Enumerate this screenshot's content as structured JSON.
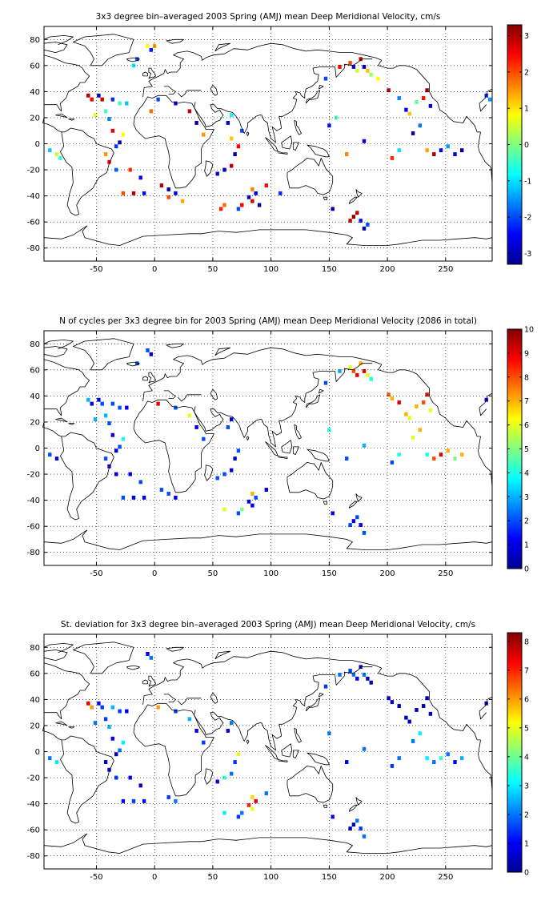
{
  "chart_data": [
    {
      "type": "heatmap",
      "title": "3x3 degree bin–averaged 2003 Spring (AMJ) mean Deep Meridional Velocity, cm/s",
      "xlabel": "",
      "ylabel": "",
      "xlim": [
        -95,
        290
      ],
      "ylim": [
        -90,
        90
      ],
      "xticks": [
        -50,
        0,
        50,
        100,
        150,
        200,
        250
      ],
      "yticks": [
        -80,
        -60,
        -40,
        -20,
        0,
        20,
        40,
        60,
        80
      ],
      "grid": true,
      "colorbar": {
        "min": -3.3,
        "max": 3.3,
        "ticks": [
          -3,
          -2,
          -1,
          0,
          1,
          2,
          3
        ]
      },
      "cells": [
        [
          -90,
          -5,
          -1.2
        ],
        [
          -84,
          -8,
          0.5
        ],
        [
          -81,
          -11,
          -0.5
        ],
        [
          -57,
          37,
          3
        ],
        [
          -54,
          34,
          2.5
        ],
        [
          -48,
          37,
          -3
        ],
        [
          -45,
          34,
          2.8
        ],
        [
          -51,
          22,
          0.7
        ],
        [
          -42,
          25,
          -0.4
        ],
        [
          -39,
          19,
          -1.6
        ],
        [
          -36,
          10,
          2.6
        ],
        [
          -33,
          -2,
          -2.1
        ],
        [
          -30,
          1,
          -3
        ],
        [
          -27,
          7,
          0.8
        ],
        [
          -36,
          34,
          -2.2
        ],
        [
          -30,
          31,
          -0.5
        ],
        [
          -24,
          31,
          -1.2
        ],
        [
          -42,
          -8,
          1.5
        ],
        [
          -39,
          -14,
          2.5
        ],
        [
          -33,
          -20,
          -1.8
        ],
        [
          -21,
          -20,
          2.2
        ],
        [
          -12,
          -26,
          -2.5
        ],
        [
          -27,
          -38,
          2
        ],
        [
          -18,
          -38,
          3
        ],
        [
          -9,
          -38,
          -2.4
        ],
        [
          -6,
          75,
          0.8
        ],
        [
          -3,
          72,
          -2.3
        ],
        [
          -18,
          60,
          -1
        ],
        [
          -15,
          65,
          -2
        ],
        [
          0,
          75,
          1.5
        ],
        [
          6,
          -32,
          3
        ],
        [
          12,
          -35,
          -3
        ],
        [
          12,
          -41,
          2
        ],
        [
          18,
          -38,
          -2.6
        ],
        [
          24,
          -44,
          1.4
        ],
        [
          54,
          -23,
          -2.8
        ],
        [
          60,
          -20,
          -3
        ],
        [
          66,
          -17,
          2.9
        ],
        [
          69,
          -8,
          -3
        ],
        [
          72,
          -2,
          2.5
        ],
        [
          66,
          4,
          1.2
        ],
        [
          75,
          10,
          -2
        ],
        [
          63,
          16,
          -2.5
        ],
        [
          66,
          22,
          -0.8
        ],
        [
          60,
          -47,
          1.8
        ],
        [
          57,
          -50,
          2.3
        ],
        [
          72,
          -50,
          -2
        ],
        [
          75,
          -47,
          2.5
        ],
        [
          81,
          -41,
          -3
        ],
        [
          84,
          -44,
          2.8
        ],
        [
          87,
          -38,
          -2.6
        ],
        [
          90,
          -47,
          -3
        ],
        [
          84,
          -35,
          1.6
        ],
        [
          96,
          -32,
          2.4
        ],
        [
          108,
          -38,
          -2.2
        ],
        [
          153,
          -50,
          -3
        ],
        [
          168,
          -59,
          2.7
        ],
        [
          171,
          -56,
          3.2
        ],
        [
          174,
          -53,
          2.9
        ],
        [
          177,
          -59,
          -2.4
        ],
        [
          180,
          -65,
          -3
        ],
        [
          183,
          -62,
          -2
        ],
        [
          168,
          62,
          2
        ],
        [
          171,
          59,
          -2.5
        ],
        [
          174,
          56,
          0.5
        ],
        [
          177,
          65,
          2.8
        ],
        [
          180,
          59,
          -3
        ],
        [
          183,
          56,
          1.2
        ],
        [
          186,
          53,
          0.2
        ],
        [
          192,
          50,
          0.8
        ],
        [
          159,
          59,
          2.5
        ],
        [
          147,
          50,
          -2
        ],
        [
          201,
          41,
          3
        ],
        [
          210,
          35,
          -1.6
        ],
        [
          216,
          26,
          -2.6
        ],
        [
          219,
          23,
          1.2
        ],
        [
          225,
          32,
          -0.2
        ],
        [
          231,
          35,
          2.4
        ],
        [
          234,
          41,
          3.2
        ],
        [
          237,
          29,
          -2.7
        ],
        [
          228,
          14,
          -1.7
        ],
        [
          222,
          8,
          -3
        ],
        [
          210,
          -5,
          -1
        ],
        [
          204,
          -11,
          2.2
        ],
        [
          234,
          -5,
          1.4
        ],
        [
          240,
          -8,
          3
        ],
        [
          246,
          -5,
          -2.5
        ],
        [
          252,
          -2,
          -1.5
        ],
        [
          258,
          -8,
          -2.7
        ],
        [
          264,
          -5,
          -3
        ],
        [
          180,
          2,
          -2.6
        ],
        [
          165,
          -8,
          1.6
        ],
        [
          150,
          14,
          -2.4
        ],
        [
          156,
          20,
          -0.4
        ],
        [
          285,
          37,
          -2.2
        ],
        [
          288,
          34,
          -1.5
        ],
        [
          -3,
          25,
          1.8
        ],
        [
          3,
          34,
          -2
        ],
        [
          18,
          31,
          -2.5
        ],
        [
          30,
          25,
          2.8
        ],
        [
          36,
          16,
          -3
        ],
        [
          42,
          7,
          1.5
        ]
      ]
    },
    {
      "type": "heatmap",
      "title": "N of cycles per 3x3 degree bin for 2003 Spring (AMJ) mean Deep Meridional Velocity (2086 in total)",
      "xlabel": "",
      "ylabel": "",
      "xlim": [
        -95,
        290
      ],
      "ylim": [
        -90,
        90
      ],
      "xticks": [
        -50,
        0,
        50,
        100,
        150,
        200,
        250
      ],
      "yticks": [
        -80,
        -60,
        -40,
        -20,
        0,
        20,
        40,
        60,
        80
      ],
      "grid": true,
      "colorbar": {
        "min": 0,
        "max": 10,
        "ticks": [
          0,
          1,
          2,
          3,
          4,
          5,
          6,
          7,
          8,
          9,
          10
        ]
      },
      "cells": [
        [
          -90,
          -5,
          2
        ],
        [
          -84,
          -8,
          1
        ],
        [
          -57,
          37,
          3
        ],
        [
          -54,
          34,
          1
        ],
        [
          -48,
          37,
          1
        ],
        [
          -45,
          34,
          2
        ],
        [
          -51,
          22,
          3
        ],
        [
          -42,
          25,
          3
        ],
        [
          -39,
          19,
          2
        ],
        [
          -36,
          10,
          1
        ],
        [
          -33,
          -2,
          1
        ],
        [
          -30,
          1,
          2
        ],
        [
          -27,
          7,
          4
        ],
        [
          -36,
          34,
          2
        ],
        [
          -30,
          31,
          2
        ],
        [
          -24,
          31,
          1
        ],
        [
          -42,
          -8,
          2
        ],
        [
          -39,
          -14,
          1
        ],
        [
          -33,
          -20,
          1
        ],
        [
          -21,
          -20,
          1
        ],
        [
          -12,
          -26,
          2
        ],
        [
          -27,
          -38,
          2
        ],
        [
          -18,
          -38,
          1
        ],
        [
          -9,
          -38,
          1
        ],
        [
          -6,
          75,
          2
        ],
        [
          -3,
          72,
          1
        ],
        [
          -15,
          65,
          2
        ],
        [
          6,
          -32,
          2
        ],
        [
          12,
          -35,
          2
        ],
        [
          18,
          -38,
          1
        ],
        [
          54,
          -23,
          2
        ],
        [
          60,
          -20,
          2
        ],
        [
          66,
          -17,
          1
        ],
        [
          69,
          -8,
          1
        ],
        [
          72,
          -2,
          2
        ],
        [
          63,
          16,
          2
        ],
        [
          66,
          22,
          1
        ],
        [
          60,
          -47,
          6
        ],
        [
          72,
          -50,
          2
        ],
        [
          75,
          -47,
          5
        ],
        [
          81,
          -41,
          1
        ],
        [
          84,
          -44,
          1
        ],
        [
          87,
          -38,
          2
        ],
        [
          84,
          -35,
          7
        ],
        [
          96,
          -32,
          1
        ],
        [
          153,
          -50,
          1
        ],
        [
          168,
          -59,
          2
        ],
        [
          171,
          -56,
          1
        ],
        [
          174,
          -53,
          2
        ],
        [
          177,
          -59,
          1
        ],
        [
          180,
          -65,
          2
        ],
        [
          168,
          62,
          6
        ],
        [
          171,
          59,
          8
        ],
        [
          174,
          56,
          9
        ],
        [
          177,
          65,
          7
        ],
        [
          180,
          59,
          9
        ],
        [
          183,
          56,
          6
        ],
        [
          186,
          53,
          4
        ],
        [
          159,
          59,
          3
        ],
        [
          147,
          50,
          2
        ],
        [
          201,
          41,
          8
        ],
        [
          204,
          38,
          7
        ],
        [
          210,
          35,
          9
        ],
        [
          216,
          26,
          7
        ],
        [
          219,
          23,
          6
        ],
        [
          225,
          32,
          7
        ],
        [
          231,
          35,
          8
        ],
        [
          234,
          41,
          9
        ],
        [
          237,
          29,
          6
        ],
        [
          228,
          14,
          7
        ],
        [
          222,
          8,
          6
        ],
        [
          210,
          -5,
          4
        ],
        [
          204,
          -11,
          2
        ],
        [
          234,
          -5,
          4
        ],
        [
          240,
          -8,
          8
        ],
        [
          246,
          -5,
          9
        ],
        [
          252,
          -2,
          7
        ],
        [
          258,
          -8,
          5
        ],
        [
          264,
          -5,
          7
        ],
        [
          180,
          2,
          3
        ],
        [
          165,
          -8,
          2
        ],
        [
          150,
          14,
          4
        ],
        [
          285,
          37,
          1
        ],
        [
          3,
          34,
          9
        ],
        [
          18,
          31,
          2
        ],
        [
          30,
          25,
          6
        ],
        [
          36,
          16,
          1
        ],
        [
          42,
          7,
          2
        ]
      ]
    },
    {
      "type": "heatmap",
      "title": "St. deviation for 3x3 degree bin–averaged 2003 Spring (AMJ) mean Deep Meridional Velocity, cm/s",
      "xlabel": "",
      "ylabel": "",
      "xlim": [
        -95,
        290
      ],
      "ylim": [
        -90,
        90
      ],
      "xticks": [
        -50,
        0,
        50,
        100,
        150,
        200,
        250
      ],
      "yticks": [
        -80,
        -60,
        -40,
        -20,
        0,
        20,
        40,
        60,
        80
      ],
      "grid": true,
      "colorbar": {
        "min": 0,
        "max": 8.3,
        "ticks": [
          0,
          1,
          2,
          3,
          4,
          5,
          6,
          7,
          8
        ]
      },
      "cells": [
        [
          -90,
          -5,
          2
        ],
        [
          -84,
          -8,
          3
        ],
        [
          -57,
          37,
          7.5
        ],
        [
          -54,
          34,
          6
        ],
        [
          -48,
          37,
          1
        ],
        [
          -45,
          34,
          1.5
        ],
        [
          -51,
          22,
          2
        ],
        [
          -42,
          25,
          1.5
        ],
        [
          -39,
          19,
          2.5
        ],
        [
          -36,
          10,
          1
        ],
        [
          -33,
          -2,
          0.5
        ],
        [
          -30,
          1,
          2
        ],
        [
          -27,
          7,
          3
        ],
        [
          -36,
          34,
          2.5
        ],
        [
          -30,
          31,
          1.5
        ],
        [
          -24,
          31,
          1
        ],
        [
          -42,
          -8,
          0.5
        ],
        [
          -39,
          -14,
          1
        ],
        [
          -33,
          -20,
          1.5
        ],
        [
          -21,
          -20,
          1
        ],
        [
          -12,
          -26,
          0.5
        ],
        [
          -27,
          -38,
          1
        ],
        [
          -18,
          -38,
          1.5
        ],
        [
          -9,
          -38,
          1
        ],
        [
          -6,
          75,
          1
        ],
        [
          -3,
          72,
          2
        ],
        [
          12,
          -35,
          1.5
        ],
        [
          18,
          -38,
          2
        ],
        [
          54,
          -23,
          1
        ],
        [
          60,
          -20,
          3.5
        ],
        [
          66,
          -17,
          2
        ],
        [
          69,
          -8,
          1.5
        ],
        [
          72,
          -2,
          5
        ],
        [
          63,
          16,
          1
        ],
        [
          66,
          22,
          2
        ],
        [
          60,
          -47,
          3
        ],
        [
          72,
          -50,
          1.5
        ],
        [
          75,
          -47,
          2
        ],
        [
          81,
          -41,
          7
        ],
        [
          84,
          -44,
          5
        ],
        [
          87,
          -38,
          7.5
        ],
        [
          84,
          -35,
          5.5
        ],
        [
          96,
          -32,
          2
        ],
        [
          153,
          -50,
          1
        ],
        [
          168,
          -59,
          0.5
        ],
        [
          171,
          -56,
          0.5
        ],
        [
          174,
          -53,
          2
        ],
        [
          177,
          -59,
          1.5
        ],
        [
          180,
          -65,
          2
        ],
        [
          168,
          62,
          1.5
        ],
        [
          171,
          59,
          2
        ],
        [
          174,
          56,
          1
        ],
        [
          177,
          65,
          0.5
        ],
        [
          180,
          59,
          2
        ],
        [
          183,
          56,
          0.5
        ],
        [
          186,
          53,
          0.5
        ],
        [
          159,
          59,
          2
        ],
        [
          147,
          50,
          1.5
        ],
        [
          201,
          41,
          0.5
        ],
        [
          204,
          38,
          0.5
        ],
        [
          210,
          35,
          0.5
        ],
        [
          216,
          26,
          0.5
        ],
        [
          219,
          23,
          0.5
        ],
        [
          225,
          32,
          0.5
        ],
        [
          231,
          35,
          0.5
        ],
        [
          234,
          41,
          0.5
        ],
        [
          237,
          29,
          0.5
        ],
        [
          228,
          14,
          3
        ],
        [
          222,
          8,
          2
        ],
        [
          210,
          -5,
          2
        ],
        [
          204,
          -11,
          1.5
        ],
        [
          234,
          -5,
          3
        ],
        [
          240,
          -8,
          2
        ],
        [
          246,
          -5,
          3.5
        ],
        [
          252,
          -2,
          2
        ],
        [
          258,
          -8,
          1
        ],
        [
          264,
          -5,
          2.5
        ],
        [
          180,
          2,
          2
        ],
        [
          165,
          -8,
          1
        ],
        [
          150,
          14,
          2
        ],
        [
          285,
          37,
          0.5
        ],
        [
          3,
          34,
          6
        ],
        [
          18,
          31,
          1.5
        ],
        [
          30,
          25,
          2.5
        ],
        [
          36,
          16,
          1
        ],
        [
          42,
          7,
          1.5
        ]
      ]
    }
  ]
}
